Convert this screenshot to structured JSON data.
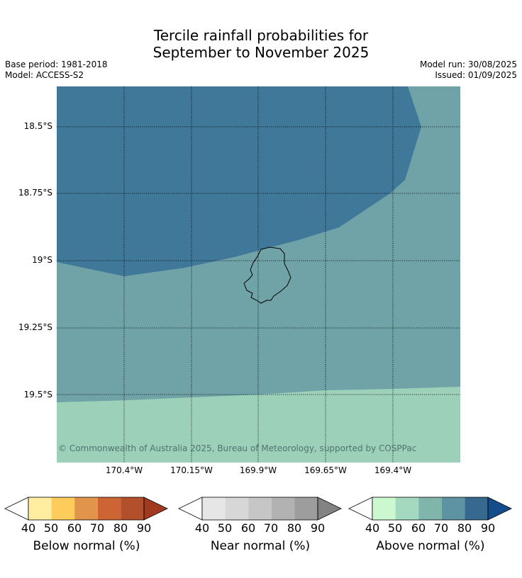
{
  "header": {
    "title_line1": "Tercile rainfall probabilities for",
    "title_line2": "September to November 2025",
    "base_period": "Base period: 1981-2018",
    "model": "Model: ACCESS-S2",
    "model_run": "Model run: 30/08/2025",
    "issued": "Issued: 01/09/2025"
  },
  "map": {
    "region_color_main": "#6fa3a7",
    "region_color_high": "#3f7898",
    "region_color_low": "#9dd0b9",
    "lat_labels": [
      "18.5°S",
      "18.75°S",
      "19°S",
      "19.25°S",
      "19.5°S"
    ],
    "lon_labels": [
      "170.4°W",
      "170.15°W",
      "169.9°W",
      "169.65°W",
      "169.4°W"
    ],
    "copyright": "© Commonwealth of Australia 2025, Bureau of Meteorology, supported by COSPPac"
  },
  "legend": {
    "ticks": [
      "40",
      "50",
      "60",
      "70",
      "80",
      "90"
    ],
    "bars": [
      {
        "caption": "Below normal (%)",
        "colors": [
          "#ffffff",
          "#ffeda0",
          "#fecc5c",
          "#e0954a",
          "#cd6433",
          "#b34f2b",
          "#a23a22"
        ]
      },
      {
        "caption": "Near normal (%)",
        "colors": [
          "#ffffff",
          "#e6e6e6",
          "#d7d7d7",
          "#c6c6c6",
          "#b2b2b2",
          "#9d9d9d",
          "#838383"
        ]
      },
      {
        "caption": "Above normal (%)",
        "colors": [
          "#ffffff",
          "#ccf8d0",
          "#a4d9bf",
          "#7fb5ab",
          "#5d93a2",
          "#37688f",
          "#134d8c"
        ]
      }
    ]
  }
}
